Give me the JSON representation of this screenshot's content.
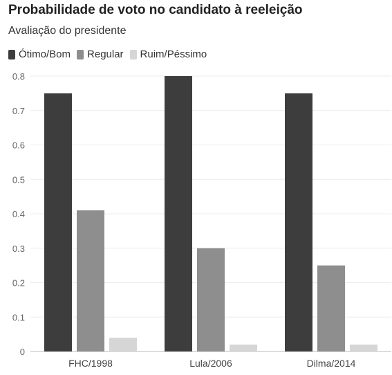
{
  "chart_data": {
    "type": "bar",
    "title": "Probabilidade de voto no candidato à reeleição",
    "subtitle": "Avaliação do presidente",
    "xlabel": "",
    "ylabel": "",
    "categories": [
      "FHC/1998",
      "Lula/2006",
      "Dilma/2014"
    ],
    "series": [
      {
        "name": "Ótimo/Bom",
        "color": "#3d3d3d",
        "values": [
          0.75,
          0.8,
          0.75
        ]
      },
      {
        "name": "Regular",
        "color": "#8e8e8e",
        "values": [
          0.41,
          0.3,
          0.25
        ]
      },
      {
        "name": "Ruim/Péssimo",
        "color": "#d6d6d6",
        "values": [
          0.04,
          0.02,
          0.02
        ]
      }
    ],
    "ylim": [
      0,
      0.8
    ],
    "yticks": [
      0,
      0.1,
      0.2,
      0.3,
      0.4,
      0.5,
      0.6,
      0.7,
      0.8
    ],
    "yticklabels": [
      "0",
      "0.1",
      "0.2",
      "0.3",
      "0.4",
      "0.5",
      "0.6",
      "0.7",
      "0.8"
    ],
    "grid": true,
    "legend_position": "top-left"
  }
}
